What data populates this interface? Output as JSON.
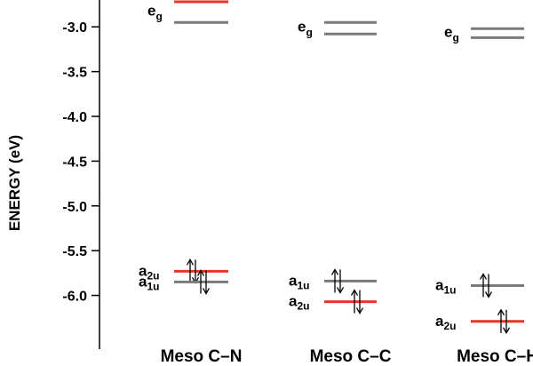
{
  "chart_data": {
    "type": "energy-level-diagram",
    "ylabel": "ENERGY (eV)",
    "ylim": [
      -6.6,
      -2.7
    ],
    "yticks": [
      -3.0,
      -3.5,
      -4.0,
      -4.5,
      -5.0,
      -5.5,
      -6.0
    ],
    "categories": [
      "Meso C–N",
      "Meso C–C",
      "Meso C–H"
    ],
    "columns": [
      {
        "name": "Meso C–N",
        "levels": [
          {
            "label": "e",
            "sub": "g",
            "energy": -2.72,
            "color": "#e8352a",
            "occupied": false
          },
          {
            "label": "e",
            "sub": "g",
            "energy": -2.95,
            "color": "#7a7a7a",
            "occupied": false
          },
          {
            "label": "a",
            "sub": "2u",
            "energy": -5.73,
            "color": "#e8352a",
            "occupied": true
          },
          {
            "label": "a",
            "sub": "1u",
            "energy": -5.85,
            "color": "#7a7a7a",
            "occupied": true
          }
        ]
      },
      {
        "name": "Meso C–C",
        "levels": [
          {
            "label": "e",
            "sub": "g",
            "energy": -2.95,
            "color": "#7a7a7a",
            "occupied": false
          },
          {
            "label": "e",
            "sub": "g",
            "energy": -3.08,
            "color": "#7a7a7a",
            "occupied": false
          },
          {
            "label": "a",
            "sub": "1u",
            "energy": -5.84,
            "color": "#7a7a7a",
            "occupied": true
          },
          {
            "label": "a",
            "sub": "2u",
            "energy": -6.07,
            "color": "#e8352a",
            "occupied": true
          }
        ]
      },
      {
        "name": "Meso C–H",
        "levels": [
          {
            "label": "e",
            "sub": "g",
            "energy": -3.02,
            "color": "#7a7a7a",
            "occupied": false
          },
          {
            "label": "e",
            "sub": "g",
            "energy": -3.12,
            "color": "#7a7a7a",
            "occupied": false
          },
          {
            "label": "a",
            "sub": "1u",
            "energy": -5.89,
            "color": "#7a7a7a",
            "occupied": true
          },
          {
            "label": "a",
            "sub": "2u",
            "energy": -6.29,
            "color": "#e8352a",
            "occupied": true
          }
        ]
      }
    ],
    "colors": {
      "highlight": "#e8352a",
      "normal": "#7a7a7a"
    }
  }
}
